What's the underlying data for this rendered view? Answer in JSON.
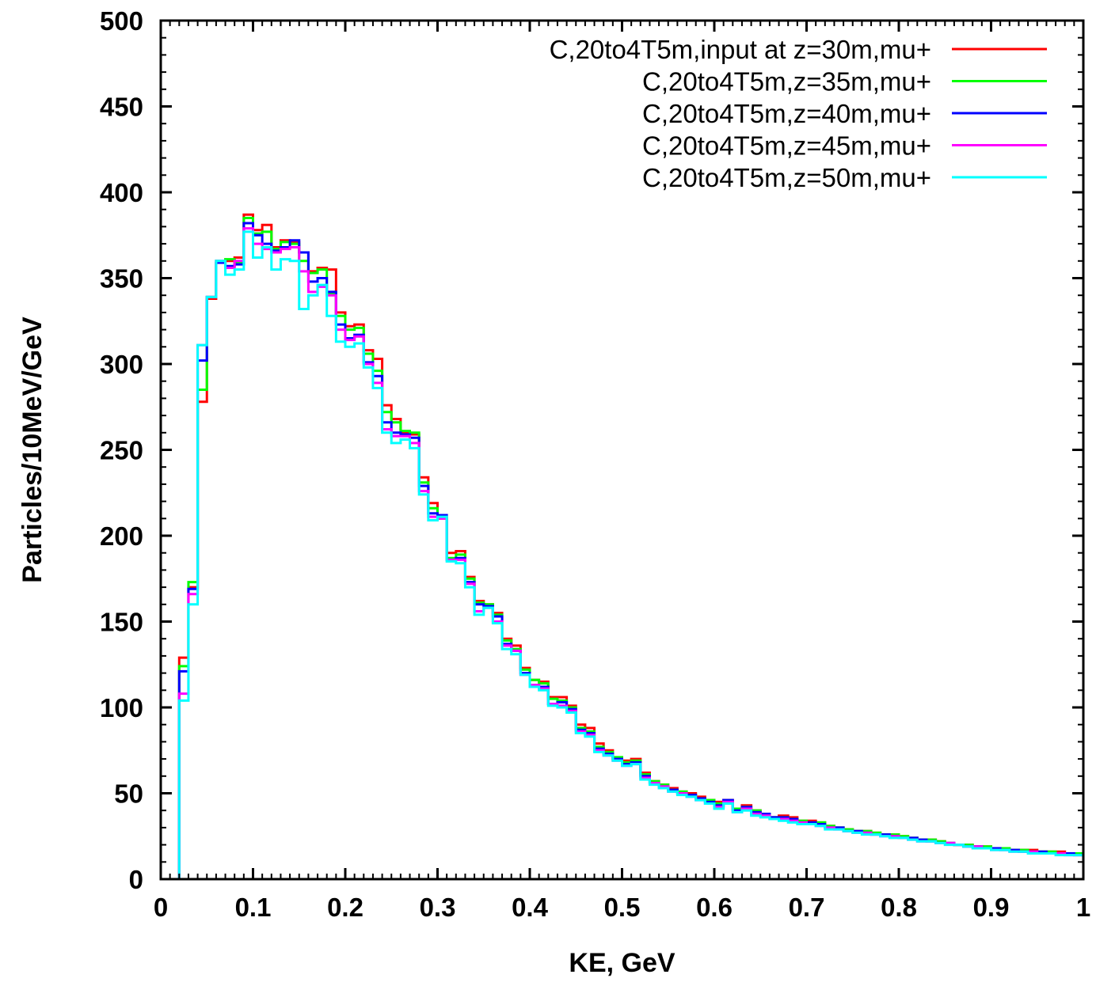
{
  "chart_data": {
    "type": "line",
    "subtype": "step-histogram",
    "title": "",
    "xlabel": "KE, GeV",
    "ylabel": "Particles/10MeV/GeV",
    "xlim": [
      0,
      1
    ],
    "ylim": [
      0,
      500
    ],
    "x_ticks": [
      "0",
      "0.1",
      "0.2",
      "0.3",
      "0.4",
      "0.5",
      "0.6",
      "0.7",
      "0.8",
      "0.9",
      "1"
    ],
    "y_ticks": [
      "0",
      "50",
      "100",
      "150",
      "200",
      "250",
      "300",
      "350",
      "400",
      "450",
      "500"
    ],
    "grid": false,
    "legend_position": "top-right",
    "bin_width": 0.01,
    "x": [
      0.02,
      0.03,
      0.04,
      0.05,
      0.06,
      0.07,
      0.08,
      0.09,
      0.1,
      0.11,
      0.12,
      0.13,
      0.14,
      0.15,
      0.16,
      0.17,
      0.18,
      0.19,
      0.2,
      0.21,
      0.22,
      0.23,
      0.24,
      0.25,
      0.26,
      0.27,
      0.28,
      0.29,
      0.3,
      0.31,
      0.32,
      0.33,
      0.34,
      0.35,
      0.36,
      0.37,
      0.38,
      0.39,
      0.4,
      0.41,
      0.42,
      0.43,
      0.44,
      0.45,
      0.46,
      0.47,
      0.48,
      0.49,
      0.5,
      0.51,
      0.52,
      0.53,
      0.54,
      0.55,
      0.56,
      0.57,
      0.58,
      0.59,
      0.6,
      0.61,
      0.62,
      0.63,
      0.64,
      0.65,
      0.66,
      0.67,
      0.68,
      0.69,
      0.7,
      0.71,
      0.72,
      0.73,
      0.74,
      0.75,
      0.76,
      0.77,
      0.78,
      0.79,
      0.8,
      0.81,
      0.82,
      0.83,
      0.84,
      0.85,
      0.86,
      0.87,
      0.88,
      0.89,
      0.9,
      0.91,
      0.92,
      0.93,
      0.94,
      0.95,
      0.96,
      0.97,
      0.98,
      0.99
    ],
    "series": [
      {
        "name": "C,20to4T5m,input at z=30m,mu+",
        "color": "#ff0000",
        "values": [
          129,
          170,
          278,
          338,
          359,
          360,
          362,
          387,
          378,
          381,
          368,
          372,
          371,
          365,
          354,
          356,
          355,
          330,
          322,
          323,
          308,
          303,
          276,
          268,
          260,
          259,
          234,
          219,
          210,
          190,
          191,
          176,
          162,
          160,
          155,
          140,
          136,
          123,
          116,
          115,
          106,
          106,
          101,
          90,
          88,
          79,
          75,
          70,
          69,
          70,
          62,
          57,
          55,
          53,
          51,
          50,
          48,
          46,
          45,
          46,
          41,
          43,
          40,
          38,
          36,
          37,
          36,
          34,
          34,
          33,
          31,
          30,
          29,
          28,
          28,
          27,
          26,
          26,
          25,
          24,
          23,
          23,
          22,
          21,
          20,
          20,
          19,
          19,
          18,
          18,
          17,
          17,
          17,
          16,
          16,
          16,
          15,
          15
        ]
      },
      {
        "name": "C,20to4T5m,z=35m,mu+",
        "color": "#00ff00",
        "values": [
          124,
          173,
          285,
          339,
          360,
          361,
          359,
          385,
          376,
          377,
          367,
          371,
          370,
          360,
          353,
          355,
          341,
          328,
          320,
          321,
          306,
          296,
          272,
          266,
          261,
          260,
          231,
          216,
          211,
          187,
          189,
          175,
          161,
          160,
          154,
          139,
          134,
          122,
          116,
          114,
          105,
          104,
          100,
          88,
          86,
          77,
          74,
          71,
          68,
          69,
          61,
          57,
          55,
          52,
          51,
          49,
          47,
          46,
          44,
          45,
          41,
          42,
          40,
          38,
          36,
          36,
          35,
          34,
          33,
          33,
          31,
          30,
          29,
          28,
          28,
          27,
          26,
          26,
          25,
          24,
          23,
          23,
          22,
          21,
          20,
          20,
          19,
          19,
          18,
          18,
          17,
          17,
          16,
          16,
          16,
          15,
          15,
          15
        ]
      },
      {
        "name": "C,20to4T5m,z=40m,mu+",
        "color": "#0000ff",
        "values": [
          121,
          169,
          302,
          339,
          359,
          357,
          358,
          382,
          375,
          370,
          366,
          368,
          372,
          365,
          348,
          350,
          342,
          323,
          315,
          317,
          301,
          293,
          266,
          260,
          259,
          257,
          229,
          213,
          212,
          186,
          187,
          173,
          160,
          159,
          153,
          137,
          133,
          120,
          113,
          112,
          102,
          103,
          99,
          87,
          85,
          76,
          73,
          70,
          67,
          68,
          60,
          56,
          54,
          52,
          50,
          49,
          47,
          45,
          43,
          46,
          40,
          42,
          39,
          38,
          36,
          36,
          35,
          33,
          33,
          32,
          30,
          30,
          28,
          28,
          27,
          26,
          26,
          25,
          24,
          24,
          23,
          22,
          21,
          21,
          20,
          19,
          19,
          18,
          18,
          17,
          17,
          16,
          16,
          16,
          15,
          15,
          15,
          14
        ]
      },
      {
        "name": "C,20to4T5m,z=45m,mu+",
        "color": "#ff00ff",
        "values": [
          108,
          166,
          311,
          339,
          360,
          356,
          360,
          379,
          370,
          367,
          365,
          367,
          368,
          354,
          342,
          345,
          340,
          320,
          314,
          316,
          300,
          289,
          262,
          258,
          258,
          254,
          226,
          211,
          210,
          186,
          186,
          172,
          156,
          158,
          150,
          136,
          133,
          119,
          113,
          111,
          102,
          101,
          98,
          86,
          84,
          75,
          72,
          69,
          66,
          67,
          59,
          56,
          54,
          51,
          50,
          48,
          46,
          44,
          42,
          45,
          39,
          41,
          38,
          37,
          35,
          35,
          34,
          33,
          32,
          31,
          30,
          29,
          28,
          27,
          27,
          26,
          25,
          25,
          24,
          23,
          22,
          22,
          21,
          21,
          20,
          19,
          19,
          18,
          17,
          17,
          16,
          16,
          16,
          15,
          15,
          15,
          14,
          14
        ]
      },
      {
        "name": "C,20to4T5m,z=50m,mu+",
        "color": "#00ffff",
        "values": [
          104,
          160,
          311,
          339,
          360,
          352,
          355,
          377,
          362,
          368,
          355,
          361,
          360,
          332,
          340,
          346,
          328,
          313,
          310,
          312,
          298,
          286,
          260,
          254,
          256,
          251,
          224,
          209,
          211,
          185,
          184,
          170,
          154,
          158,
          149,
          134,
          131,
          119,
          112,
          110,
          101,
          100,
          97,
          85,
          83,
          74,
          72,
          69,
          66,
          67,
          58,
          55,
          53,
          51,
          49,
          48,
          46,
          44,
          41,
          44,
          39,
          40,
          37,
          36,
          35,
          34,
          33,
          32,
          32,
          31,
          29,
          29,
          28,
          27,
          26,
          26,
          25,
          24,
          24,
          23,
          22,
          22,
          21,
          20,
          20,
          19,
          18,
          18,
          17,
          17,
          16,
          16,
          15,
          15,
          15,
          14,
          14,
          14
        ]
      }
    ]
  }
}
